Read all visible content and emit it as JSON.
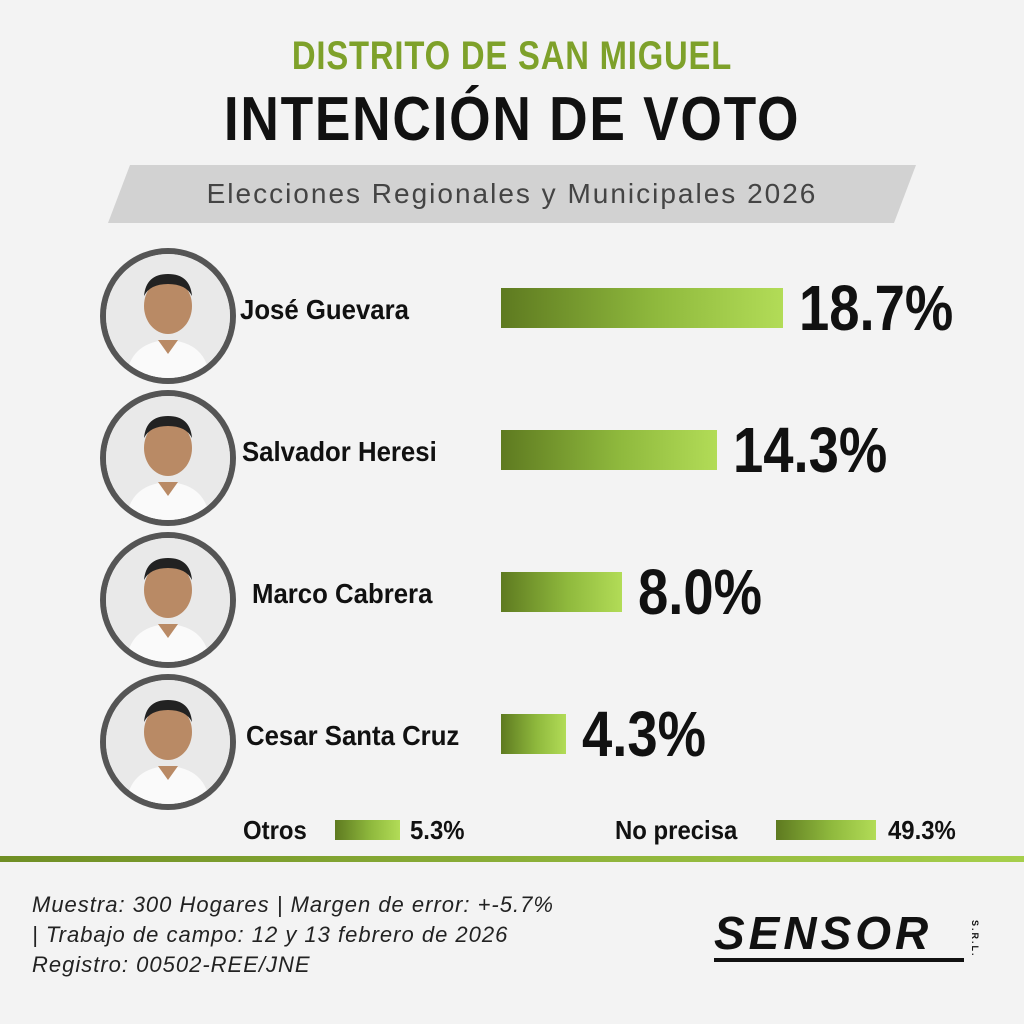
{
  "header": {
    "district": "DISTRITO DE SAN MIGUEL",
    "title": "INTENCIÓN DE VOTO",
    "subtitle": "Elecciones Regionales y Municipales 2026"
  },
  "colors": {
    "accent_green": "#7ea12a",
    "bar_dark": "#5e7a20",
    "bar_light": "#b2dc57",
    "band_gray": "#d2d2d2"
  },
  "chart_data": {
    "type": "bar",
    "orientation": "horizontal",
    "title": "INTENCIÓN DE VOTO",
    "subtitle": "Elecciones Regionales y Municipales 2026",
    "categories": [
      "José Guevara",
      "Salvador Heresi",
      "Marco Cabrera",
      "Cesar Santa Cruz",
      "Otros",
      "No precisa"
    ],
    "values": [
      18.7,
      14.3,
      8.0,
      4.3,
      5.3,
      49.3
    ],
    "value_labels": [
      "18.7%",
      "14.3%",
      "8.0%",
      "4.3%",
      "5.3%",
      "49.3%"
    ],
    "unit": "%",
    "grid": false,
    "legend": "none"
  },
  "candidates": [
    {
      "name": "José Guevara",
      "value": 18.7,
      "label": "18.7%",
      "icon": "person-photo-icon"
    },
    {
      "name": "Salvador Heresi",
      "value": 14.3,
      "label": "14.3%",
      "icon": "person-photo-icon"
    },
    {
      "name": "Marco Cabrera",
      "value": 8.0,
      "label": "8.0%",
      "icon": "person-photo-icon"
    },
    {
      "name": "Cesar Santa Cruz",
      "value": 4.3,
      "label": "4.3%",
      "icon": "person-photo-icon"
    }
  ],
  "others": [
    {
      "name": "Otros",
      "value": 5.3,
      "label": "5.3%"
    },
    {
      "name": "No precisa",
      "value": 49.3,
      "label": "49.3%"
    }
  ],
  "footer": {
    "line1": "Muestra: 300 Hogares | Margen de error: +-5.7%",
    "line2": "| Trabajo de campo: 12 y 13 febrero de 2026",
    "line3": "Registro: 00502-REE/JNE"
  },
  "logo": {
    "text": "SENSOR",
    "suffix": "S.R.L."
  }
}
